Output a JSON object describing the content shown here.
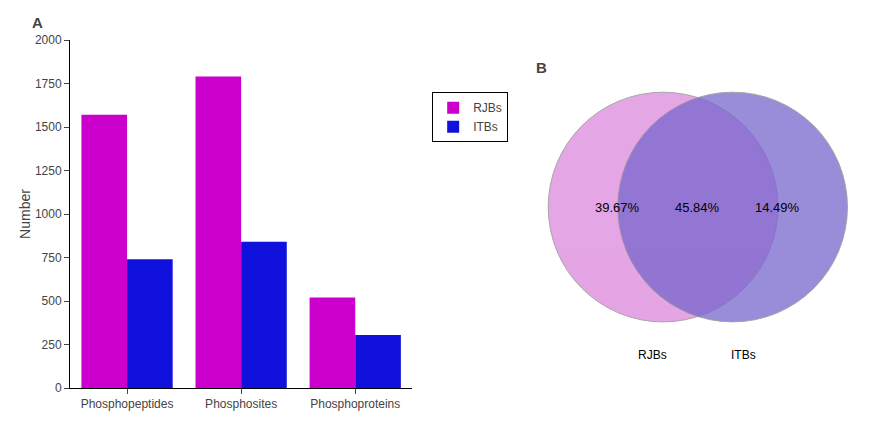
{
  "chart_data": [
    {
      "type": "bar",
      "title": "A",
      "categories": [
        "Phosphopeptides",
        "Phosphosites",
        "Phosphoproteins"
      ],
      "series": [
        {
          "name": "RJBs",
          "color": "#CC00CC",
          "values": [
            1570,
            1790,
            520
          ]
        },
        {
          "name": "ITBs",
          "color": "#1111DD",
          "values": [
            740,
            840,
            305
          ]
        }
      ],
      "ylabel": "Number",
      "ylim": [
        0,
        2000
      ],
      "yticks": [
        0,
        250,
        500,
        750,
        1000,
        1250,
        1500,
        1750,
        2000
      ],
      "grid": false,
      "legend": "upper right"
    },
    {
      "type": "venn",
      "title": "B",
      "series": [
        {
          "name": "RJBs",
          "color": "#DD88DD"
        },
        {
          "name": "ITBs",
          "color": "#7766CC"
        }
      ],
      "values": [
        39.67,
        45.84,
        14.49
      ],
      "value_labels": [
        "39.67%",
        "45.84%",
        "14.49%"
      ],
      "data_labels": true
    }
  ]
}
